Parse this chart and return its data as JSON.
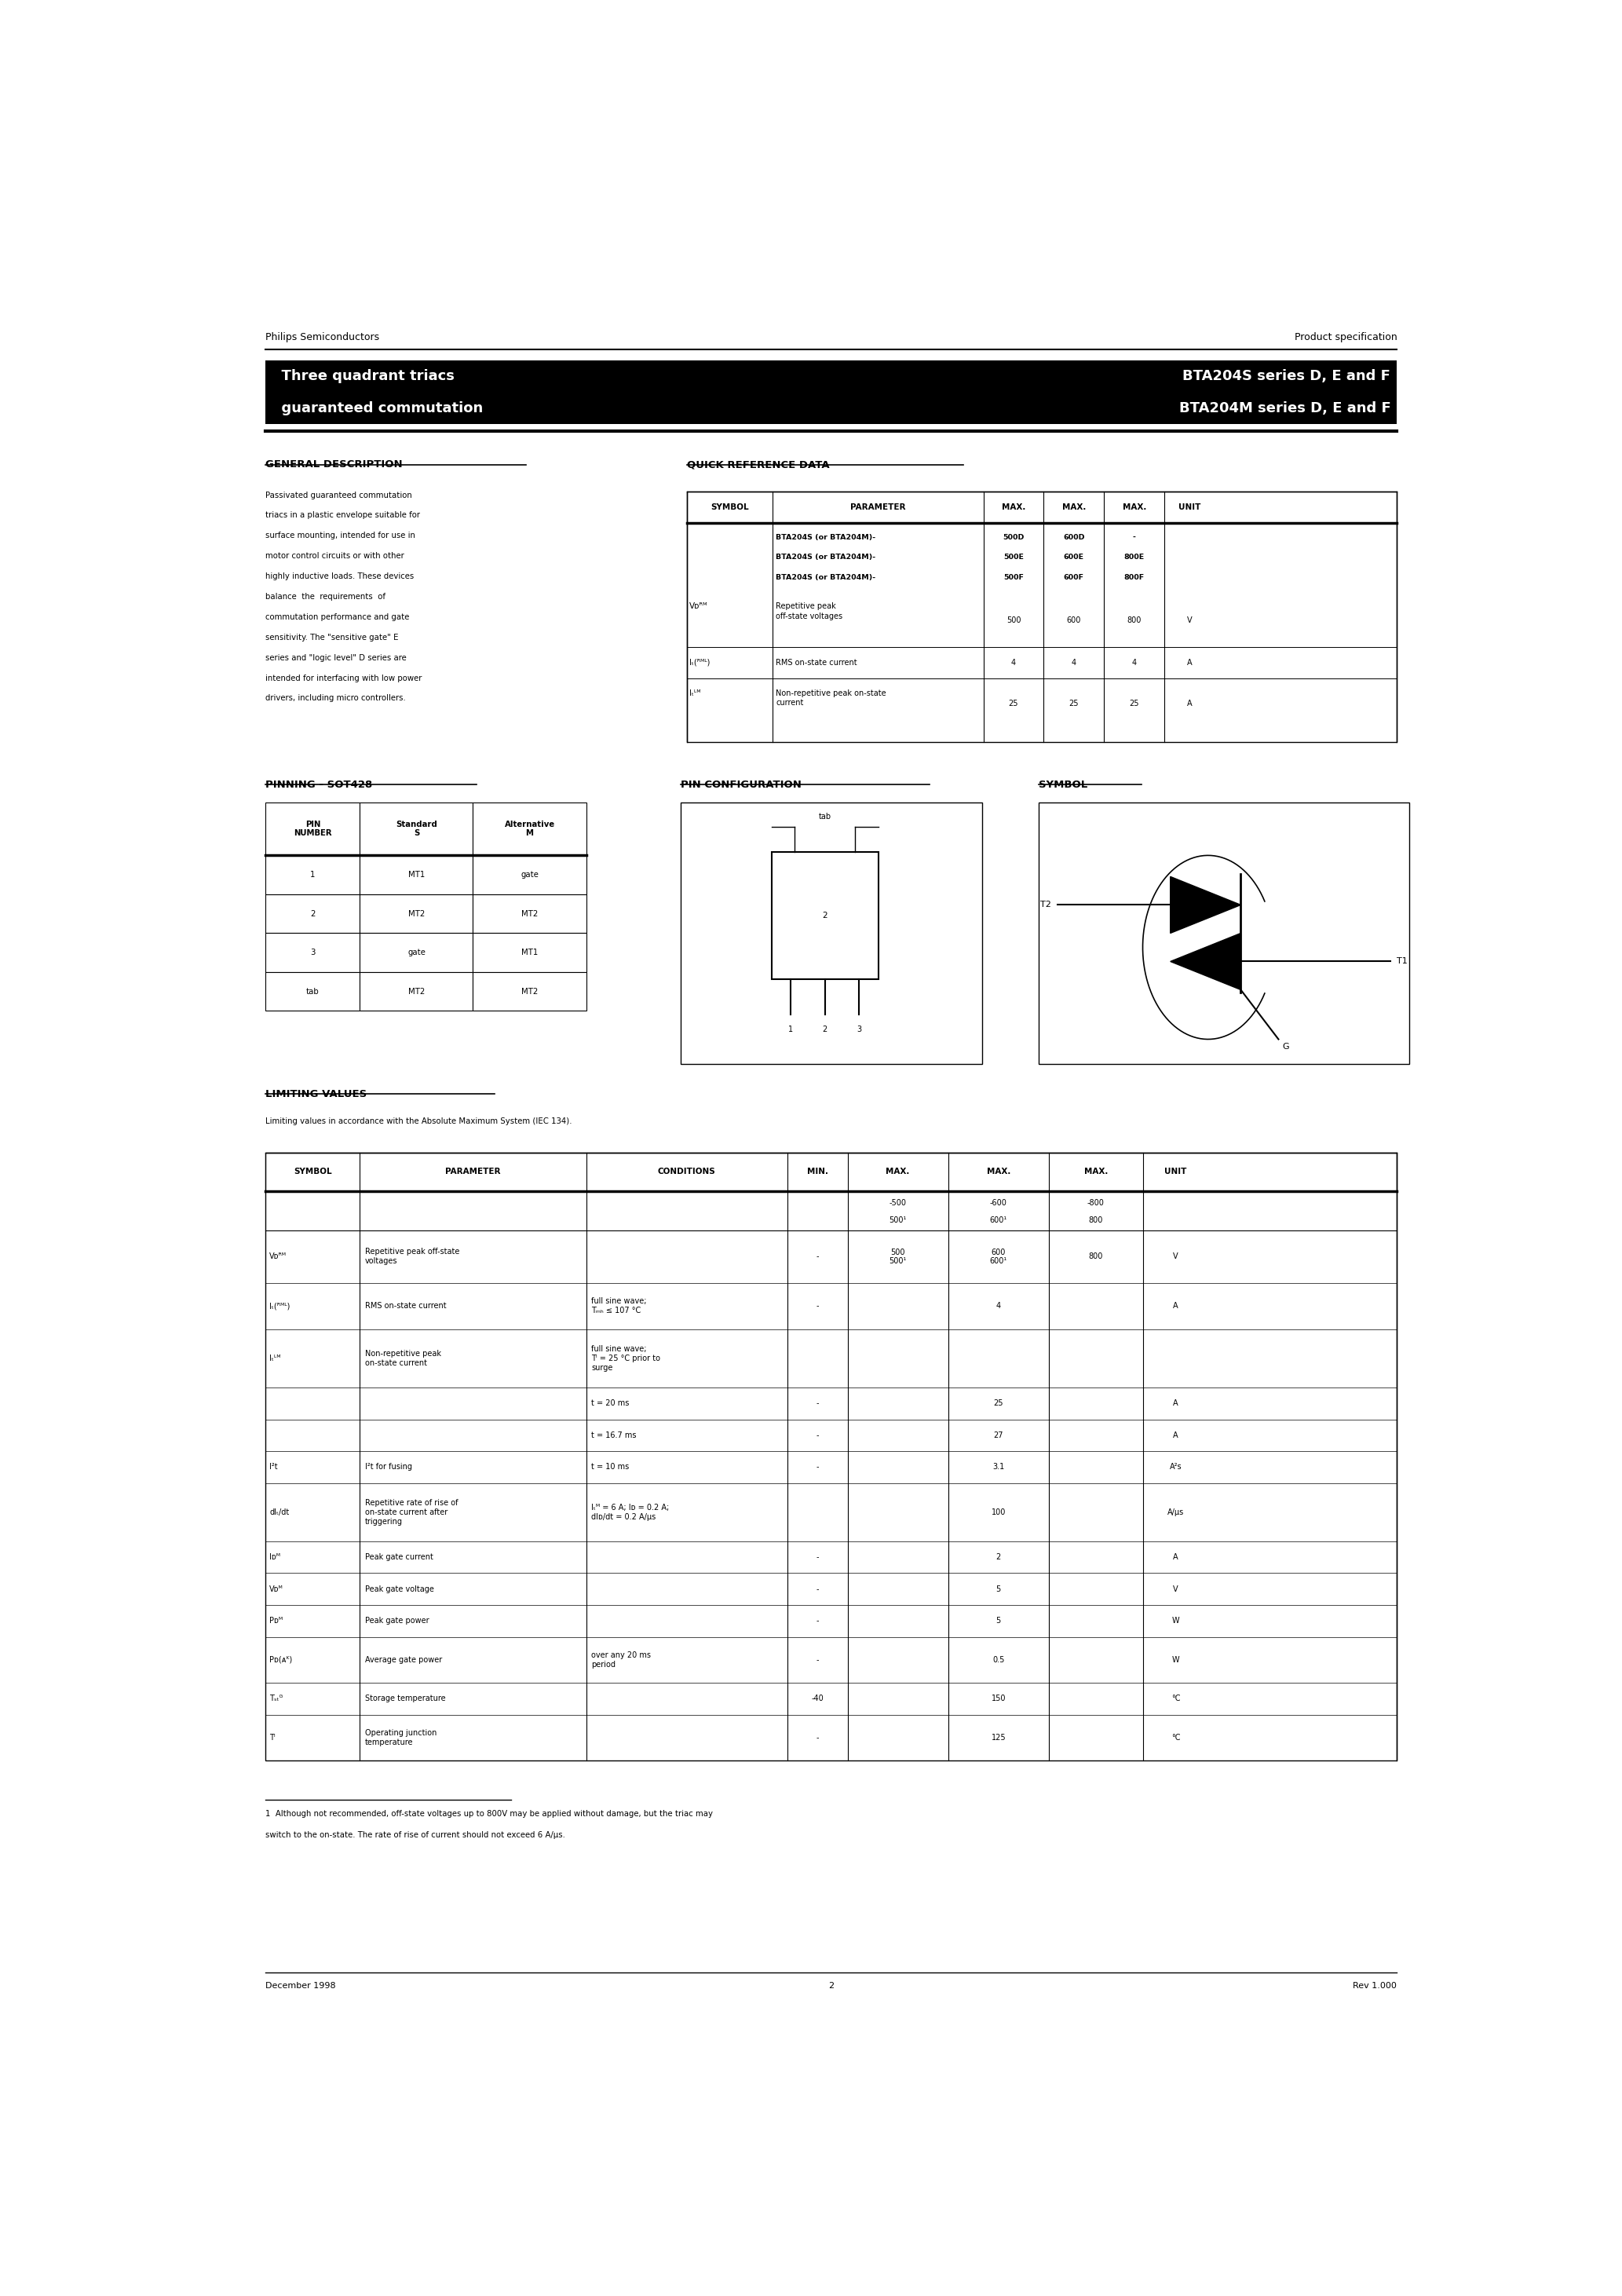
{
  "page_width": 20.66,
  "page_height": 29.24,
  "bg_color": "#ffffff",
  "header_left": "Philips Semiconductors",
  "header_right": "Product specification",
  "title_left_line1": "  Three quadrant triacs",
  "title_left_line2": "  guaranteed commutation",
  "title_right_line1": "BTA204S series D, E and F",
  "title_right_line2": "BTA204M series D, E and F",
  "section1_title": "GENERAL DESCRIPTION",
  "section2_title": "QUICK REFERENCE DATA",
  "general_desc_lines": [
    "Passivated guaranteed commutation",
    "triacs in a plastic envelope suitable for",
    "surface mounting, intended for use in",
    "motor control circuits or with other",
    "highly inductive loads. These devices",
    "balance  the  requirements  of",
    "commutation performance and gate",
    "sensitivity. The \"sensitive gate\" E",
    "series and \"logic level\" D series are",
    "intended for interfacing with low power",
    "drivers, including micro controllers."
  ],
  "pinning_title": "PINNING - SOT428",
  "pin_config_title": "PIN CONFIGURATION",
  "symbol_title": "SYMBOL",
  "pin_rows": [
    [
      "1",
      "MT1",
      "gate"
    ],
    [
      "2",
      "MT2",
      "MT2"
    ],
    [
      "3",
      "gate",
      "MT1"
    ],
    [
      "tab",
      "MT2",
      "MT2"
    ]
  ],
  "limiting_title": "LIMITING VALUES",
  "limiting_subtitle": "Limiting values in accordance with the Absolute Maximum System (IEC 134).",
  "footnote_line1": "1  Although not recommended, off-state voltages up to 800V may be applied without damage, but the triac may",
  "footnote_line2": "switch to the on-state. The rate of rise of current should not exceed 6 A/μs.",
  "footer_left": "December 1998",
  "footer_center": "2",
  "footer_right": "Rev 1.000"
}
